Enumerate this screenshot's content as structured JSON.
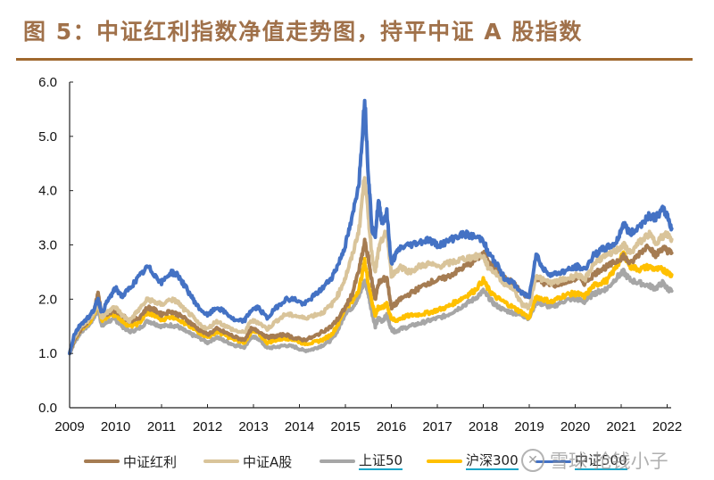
{
  "title": "图 5：中证红利指数净值走势图，持平中证 A 股指数",
  "watermark": {
    "logo_icon": "snowball-logo-icon",
    "text": "雪球  抢钱小子"
  },
  "chart_data": {
    "type": "line",
    "title": "图 5：中证红利指数净值走势图，持平中证 A 股指数",
    "xlabel": "",
    "ylabel": "",
    "xlim": [
      2009,
      2022.1
    ],
    "ylim": [
      0,
      6
    ],
    "yticks": [
      "0.0",
      "1.0",
      "2.0",
      "3.0",
      "4.0",
      "5.0",
      "6.0"
    ],
    "ytick_values": [
      0,
      1,
      2,
      3,
      4,
      5,
      6
    ],
    "xticks": [
      "2009",
      "2010",
      "2011",
      "2012",
      "2013",
      "2014",
      "2015",
      "2016",
      "2017",
      "2018",
      "2019",
      "2020",
      "2021",
      "2022"
    ],
    "xtick_values": [
      2009,
      2010,
      2011,
      2012,
      2013,
      2014,
      2015,
      2016,
      2017,
      2018,
      2019,
      2020,
      2021,
      2022
    ],
    "grid": false,
    "legend_position": "bottom",
    "x": [
      2009.0,
      2009.1,
      2009.25,
      2009.45,
      2009.55,
      2009.62,
      2009.7,
      2009.85,
      2010.0,
      2010.15,
      2010.3,
      2010.5,
      2010.7,
      2010.85,
      2011.0,
      2011.2,
      2011.35,
      2011.5,
      2011.65,
      2011.8,
      2012.0,
      2012.2,
      2012.4,
      2012.6,
      2012.8,
      2012.95,
      2013.1,
      2013.3,
      2013.5,
      2013.7,
      2013.9,
      2014.1,
      2014.3,
      2014.5,
      2014.7,
      2014.85,
      2015.0,
      2015.15,
      2015.3,
      2015.42,
      2015.5,
      2015.58,
      2015.65,
      2015.72,
      2015.8,
      2015.9,
      2016.0,
      2016.08,
      2016.2,
      2016.4,
      2016.6,
      2016.8,
      2017.0,
      2017.2,
      2017.4,
      2017.6,
      2017.8,
      2018.0,
      2018.1,
      2018.25,
      2018.45,
      2018.65,
      2018.85,
      2019.0,
      2019.15,
      2019.3,
      2019.5,
      2019.7,
      2019.9,
      2020.05,
      2020.2,
      2020.4,
      2020.55,
      2020.7,
      2020.9,
      2021.05,
      2021.2,
      2021.4,
      2021.6,
      2021.75,
      2021.9,
      2022.0,
      2022.1
    ],
    "series": [
      {
        "name": "中证红利",
        "color": "#A57C52",
        "values": [
          1.0,
          1.25,
          1.45,
          1.65,
          1.85,
          2.12,
          1.7,
          1.75,
          1.8,
          1.7,
          1.6,
          1.65,
          1.85,
          1.8,
          1.72,
          1.78,
          1.72,
          1.65,
          1.55,
          1.45,
          1.35,
          1.45,
          1.38,
          1.3,
          1.25,
          1.45,
          1.42,
          1.3,
          1.32,
          1.35,
          1.28,
          1.25,
          1.3,
          1.4,
          1.5,
          1.65,
          1.85,
          2.1,
          2.55,
          3.05,
          2.75,
          2.3,
          2.0,
          2.3,
          2.35,
          2.4,
          1.85,
          1.9,
          2.0,
          2.1,
          2.2,
          2.3,
          2.35,
          2.4,
          2.5,
          2.6,
          2.7,
          2.85,
          2.75,
          2.55,
          2.4,
          2.3,
          2.1,
          2.05,
          2.4,
          2.3,
          2.25,
          2.3,
          2.35,
          2.4,
          2.3,
          2.45,
          2.55,
          2.6,
          2.7,
          2.8,
          2.65,
          2.85,
          3.0,
          2.8,
          2.95,
          2.9,
          2.85
        ]
      },
      {
        "name": "中证A股",
        "color": "#D9C49A",
        "values": [
          1.0,
          1.3,
          1.5,
          1.65,
          1.8,
          1.95,
          1.65,
          1.8,
          1.85,
          1.7,
          1.6,
          1.8,
          2.0,
          1.95,
          1.9,
          2.0,
          1.95,
          1.8,
          1.7,
          1.55,
          1.45,
          1.6,
          1.5,
          1.42,
          1.38,
          1.6,
          1.58,
          1.45,
          1.6,
          1.72,
          1.7,
          1.65,
          1.7,
          1.75,
          1.9,
          2.1,
          2.4,
          2.8,
          3.3,
          4.3,
          3.5,
          2.8,
          2.5,
          2.9,
          3.1,
          3.25,
          2.45,
          2.5,
          2.6,
          2.5,
          2.6,
          2.65,
          2.6,
          2.65,
          2.7,
          2.75,
          2.78,
          2.8,
          2.6,
          2.5,
          2.3,
          2.2,
          1.9,
          1.85,
          2.45,
          2.35,
          2.3,
          2.35,
          2.4,
          2.45,
          2.35,
          2.65,
          2.75,
          2.8,
          2.9,
          3.0,
          2.85,
          3.05,
          3.2,
          3.05,
          3.15,
          3.2,
          3.1
        ]
      },
      {
        "name": "上证50",
        "color": "#A6A6A6",
        "values": [
          1.0,
          1.2,
          1.4,
          1.55,
          1.7,
          1.85,
          1.5,
          1.6,
          1.62,
          1.5,
          1.4,
          1.45,
          1.6,
          1.55,
          1.5,
          1.52,
          1.5,
          1.42,
          1.35,
          1.3,
          1.2,
          1.3,
          1.22,
          1.15,
          1.12,
          1.3,
          1.28,
          1.1,
          1.12,
          1.15,
          1.12,
          1.05,
          1.08,
          1.15,
          1.25,
          1.45,
          1.75,
          1.85,
          2.05,
          2.35,
          2.1,
          1.75,
          1.5,
          1.65,
          1.6,
          1.7,
          1.45,
          1.4,
          1.45,
          1.5,
          1.55,
          1.6,
          1.65,
          1.7,
          1.8,
          1.9,
          2.0,
          2.15,
          2.05,
          1.9,
          1.8,
          1.75,
          1.7,
          1.65,
          1.95,
          1.9,
          1.85,
          1.95,
          2.0,
          2.0,
          1.95,
          2.1,
          2.15,
          2.2,
          2.4,
          2.5,
          2.35,
          2.3,
          2.25,
          2.2,
          2.3,
          2.2,
          2.15
        ]
      },
      {
        "name": "沪深300",
        "color": "#FFC000",
        "values": [
          1.0,
          1.25,
          1.45,
          1.6,
          1.75,
          1.95,
          1.6,
          1.7,
          1.72,
          1.6,
          1.5,
          1.55,
          1.75,
          1.7,
          1.62,
          1.68,
          1.65,
          1.55,
          1.48,
          1.4,
          1.3,
          1.4,
          1.33,
          1.25,
          1.2,
          1.4,
          1.38,
          1.2,
          1.25,
          1.28,
          1.25,
          1.18,
          1.2,
          1.25,
          1.35,
          1.55,
          1.85,
          1.95,
          2.2,
          2.7,
          2.3,
          1.95,
          1.7,
          1.85,
          1.85,
          1.9,
          1.65,
          1.6,
          1.65,
          1.7,
          1.72,
          1.75,
          1.8,
          1.85,
          1.95,
          2.05,
          2.15,
          2.35,
          2.2,
          2.05,
          1.95,
          1.85,
          1.75,
          1.65,
          2.05,
          2.0,
          1.95,
          2.05,
          2.1,
          2.1,
          2.05,
          2.25,
          2.3,
          2.35,
          2.6,
          2.85,
          2.6,
          2.55,
          2.6,
          2.55,
          2.55,
          2.5,
          2.45
        ]
      },
      {
        "name": "中证500",
        "color": "#4472C4",
        "values": [
          1.0,
          1.35,
          1.55,
          1.7,
          1.85,
          2.0,
          1.75,
          2.0,
          2.2,
          2.05,
          2.2,
          2.4,
          2.6,
          2.45,
          2.3,
          2.5,
          2.45,
          2.25,
          2.05,
          1.85,
          1.7,
          1.85,
          1.75,
          1.6,
          1.6,
          1.8,
          1.85,
          1.65,
          1.85,
          2.0,
          2.0,
          1.9,
          2.05,
          2.2,
          2.4,
          2.65,
          3.0,
          3.5,
          4.2,
          5.7,
          4.3,
          3.3,
          3.2,
          3.8,
          3.4,
          3.6,
          2.65,
          2.8,
          2.95,
          3.0,
          3.05,
          3.1,
          3.0,
          3.05,
          3.15,
          3.2,
          3.15,
          3.1,
          2.85,
          2.7,
          2.4,
          2.3,
          2.1,
          2.05,
          2.85,
          2.55,
          2.45,
          2.5,
          2.55,
          2.6,
          2.55,
          2.8,
          2.9,
          2.95,
          3.05,
          3.4,
          3.2,
          3.35,
          3.55,
          3.5,
          3.65,
          3.55,
          3.3
        ]
      }
    ],
    "legend": [
      {
        "name": "中证红利",
        "color": "#A57C52",
        "underlined": false
      },
      {
        "name": "中证A股",
        "color": "#D9C49A",
        "underlined": false
      },
      {
        "name": "上证50",
        "color": "#A6A6A6",
        "underlined": true
      },
      {
        "name": "沪深300",
        "color": "#FFC000",
        "underlined": true
      },
      {
        "name": "中证500",
        "color": "#4472C4",
        "underlined": true
      }
    ]
  }
}
